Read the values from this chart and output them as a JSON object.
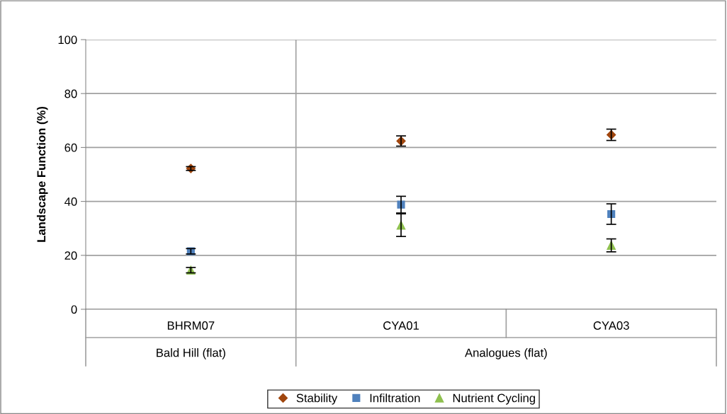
{
  "chart_data": {
    "type": "scatter",
    "ylabel": "Landscape Function (%)",
    "categories": [
      "BHRM07",
      "CYA01",
      "CYA03"
    ],
    "ylim": [
      0,
      100
    ],
    "yticks": [
      0,
      20,
      40,
      60,
      80,
      100
    ],
    "grid": "y",
    "legend": "bottom",
    "annotations": [
      "Bald Hill (flat)",
      "Analogues (flat)"
    ],
    "series": [
      {
        "name": "Stability",
        "color": "#a0460e",
        "marker": "diamond",
        "values": [
          52.2,
          62.4,
          64.7
        ],
        "errors": [
          0.7,
          1.9,
          2.1
        ]
      },
      {
        "name": "Infiltration",
        "color": "#4f81bd",
        "marker": "square",
        "values": [
          21.5,
          38.8,
          35.3
        ],
        "errors": [
          1.0,
          3.1,
          3.8
        ]
      },
      {
        "name": "Nutrient Cycling",
        "color": "#8fc04f",
        "marker": "triangle",
        "values": [
          14.5,
          31.2,
          23.7
        ],
        "errors": [
          1.0,
          4.2,
          2.4
        ]
      }
    ]
  }
}
